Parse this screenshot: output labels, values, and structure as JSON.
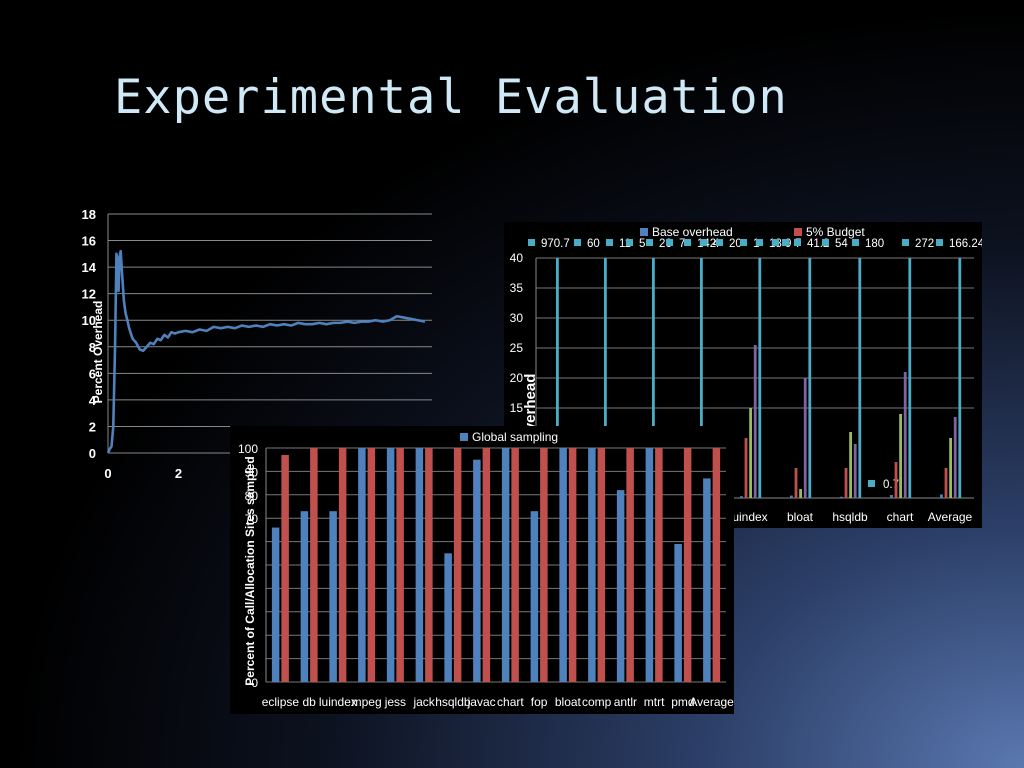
{
  "slide": {
    "title": "Experimental Evaluation"
  },
  "chart_data": [
    {
      "type": "line",
      "ylabel": "Percent Overhead",
      "ylim": [
        0,
        18
      ],
      "y_ticks": [
        0,
        2,
        4,
        6,
        8,
        10,
        12,
        14,
        16,
        18
      ],
      "x_tick_labels": [
        "0",
        "2"
      ],
      "color": "#4f81bd",
      "series": [
        {
          "x": [
            0.0,
            0.05,
            0.1,
            0.15,
            0.2,
            0.24,
            0.27,
            0.3,
            0.33,
            0.36,
            0.4,
            0.45,
            0.5,
            0.55,
            0.6,
            0.7,
            0.8,
            0.9,
            1.0,
            1.1,
            1.2,
            1.3,
            1.4,
            1.5,
            1.6,
            1.7,
            1.8,
            1.9,
            2.0,
            2.2,
            2.4,
            2.6,
            2.8,
            3.0,
            3.2,
            3.4,
            3.6,
            3.8,
            4.0,
            4.2,
            4.4,
            4.6,
            4.8,
            5.0,
            5.2,
            5.4,
            5.6,
            5.8,
            6.0,
            6.2,
            6.4,
            6.6,
            6.8,
            7.0,
            7.2,
            7.4,
            7.6,
            7.8,
            8.0,
            8.2,
            8.4,
            8.6,
            8.8,
            9.0
          ],
          "y": [
            0.0,
            0.3,
            0.5,
            2.0,
            8.0,
            15.0,
            14.5,
            12.2,
            14.8,
            15.2,
            13.5,
            11.5,
            10.5,
            10.0,
            9.4,
            8.6,
            8.3,
            7.8,
            7.7,
            8.0,
            8.3,
            8.2,
            8.6,
            8.5,
            8.9,
            8.7,
            9.1,
            9.0,
            9.1,
            9.2,
            9.1,
            9.3,
            9.2,
            9.5,
            9.4,
            9.5,
            9.4,
            9.6,
            9.5,
            9.6,
            9.5,
            9.7,
            9.6,
            9.7,
            9.6,
            9.8,
            9.7,
            9.7,
            9.8,
            9.7,
            9.8,
            9.8,
            9.9,
            9.8,
            9.9,
            9.9,
            10.0,
            9.9,
            10.0,
            10.3,
            10.2,
            10.1,
            10.0,
            9.9
          ]
        }
      ]
    },
    {
      "type": "bar",
      "ylabel": "overhead",
      "ylim": [
        0,
        40
      ],
      "y_ticks": [
        15,
        20,
        25,
        30,
        35,
        40
      ],
      "categories": [
        "uindex",
        "bloat",
        "hsqldb",
        "chart",
        "Average"
      ],
      "legend": [
        "Base overhead",
        "5% Budget"
      ],
      "callout_labels": [
        "970.7",
        "60",
        "11",
        "5",
        "26",
        "7",
        "142",
        "4",
        "20",
        "1",
        "18",
        "9",
        "7",
        "41.2",
        "54",
        "180",
        "272",
        "166.24",
        "0.7"
      ],
      "series": [
        {
          "name": "Base overhead",
          "color": "#4f81bd",
          "values": [
            0.3,
            0.4,
            0.2,
            0.5,
            0.6
          ]
        },
        {
          "name": "5% Budget",
          "color": "#c0504d",
          "values": [
            10,
            5,
            5,
            6,
            5
          ]
        },
        {
          "color": "#9bbb59",
          "values": [
            15,
            1.5,
            11,
            14,
            10
          ]
        },
        {
          "color": "#8064a2",
          "values": [
            25.5,
            20,
            9,
            21,
            13.5
          ]
        },
        {
          "color": "#4bacc6",
          "values": [
            40,
            40,
            40,
            40,
            40
          ]
        }
      ]
    },
    {
      "type": "bar",
      "ylabel": "Percent of Call/Allocation Sites sampled",
      "ylim": [
        0,
        100
      ],
      "y_ticks": [
        0,
        70,
        80,
        90,
        100
      ],
      "legend": [
        "Global sampling"
      ],
      "categories": [
        "eclipse",
        "db",
        "luindex",
        "mpegaudio",
        "jess",
        "jack",
        "hsqldb",
        "javac",
        "chart",
        "fop",
        "bloat",
        "compress",
        "antlr",
        "mtrt",
        "pmd",
        "Average"
      ],
      "x_tick_labels": [
        "eclipse",
        "db",
        "luindex",
        "mpeg",
        "jess",
        "jack",
        "hsqldb",
        "javac",
        "chart",
        "fop",
        "bloat",
        "comp",
        "antlr",
        "mtrt",
        "pmd",
        "Average"
      ],
      "series": [
        {
          "name": "Global sampling",
          "color": "#4f81bd",
          "values": [
            66,
            73,
            73,
            100,
            100,
            100,
            55,
            95,
            100,
            73,
            100,
            100,
            82,
            100,
            59,
            87
          ]
        },
        {
          "color": "#c0504d",
          "values": [
            97,
            100,
            100,
            100,
            100,
            100,
            100,
            100,
            100,
            100,
            100,
            100,
            100,
            100,
            100,
            100
          ]
        }
      ]
    }
  ]
}
